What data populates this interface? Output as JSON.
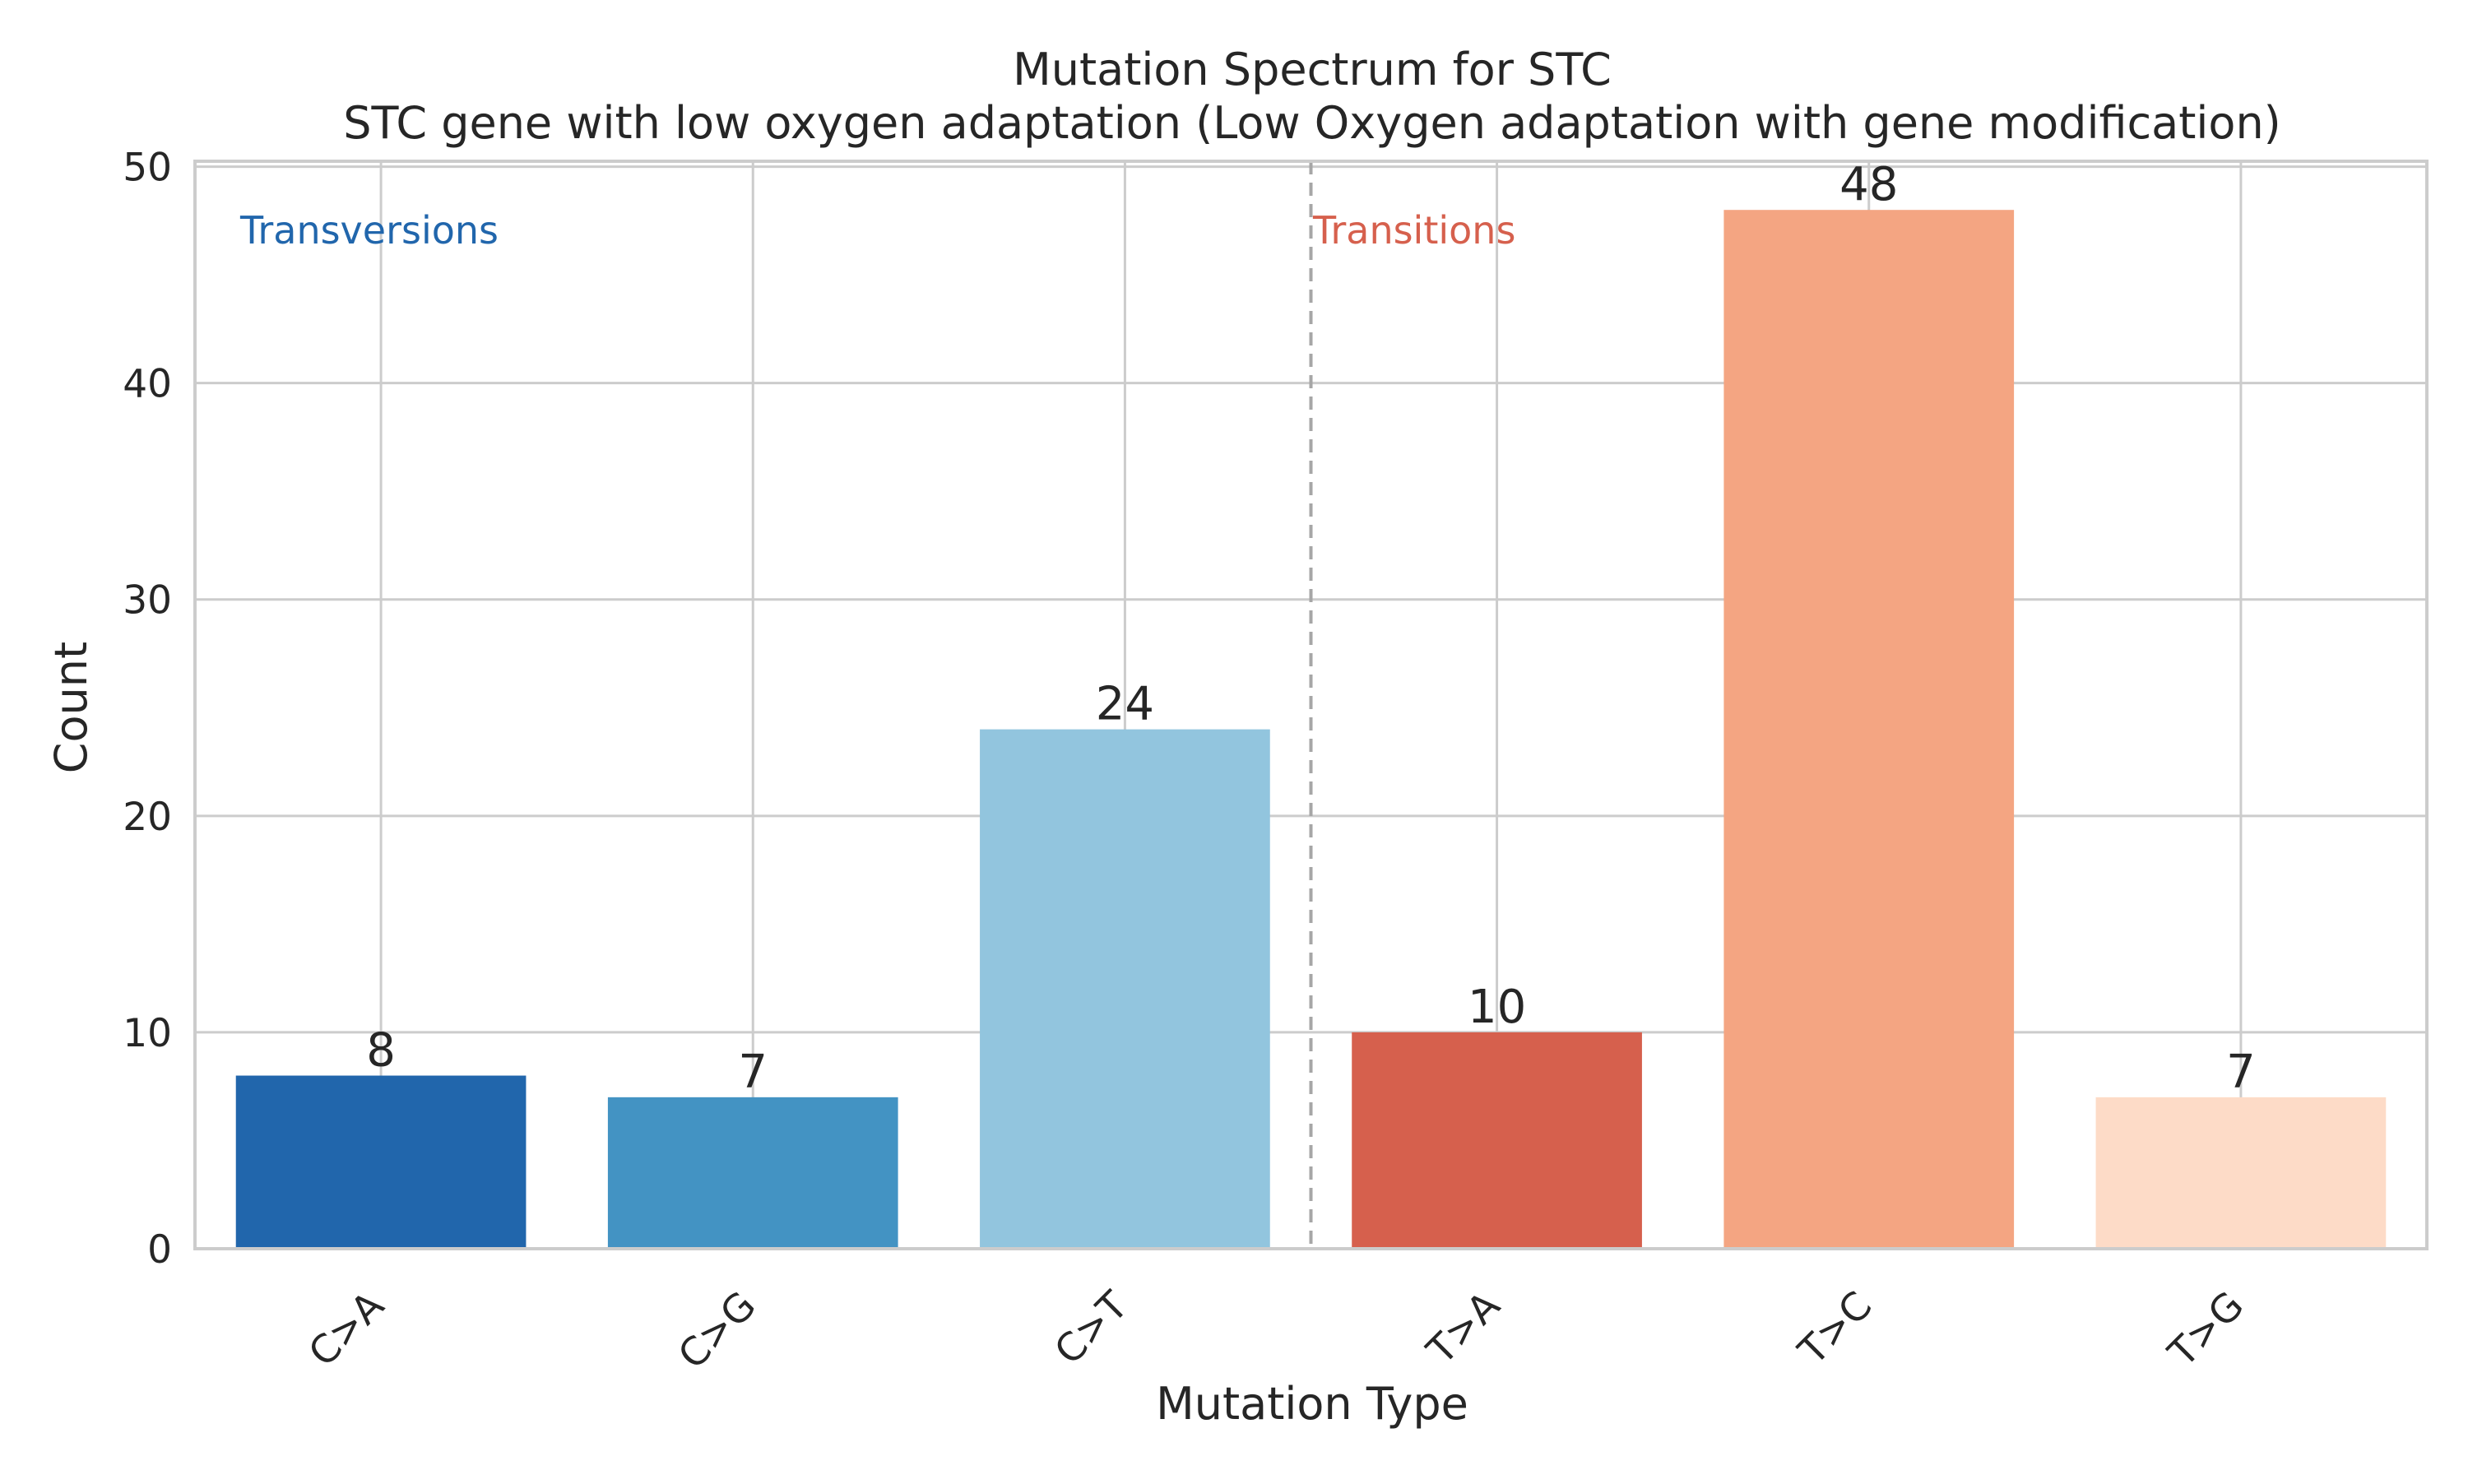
{
  "chart_data": {
    "type": "bar",
    "title": "Mutation Spectrum for STC",
    "subtitle": "STC gene with low oxygen adaptation (Low Oxygen adaptation with gene modification)",
    "xlabel": "Mutation Type",
    "ylabel": "Count",
    "categories": [
      "C>A",
      "C>G",
      "C>T",
      "T>A",
      "T>C",
      "T>G"
    ],
    "values": [
      8,
      7,
      24,
      10,
      48,
      7
    ],
    "colors": [
      "#2166ac",
      "#4393c3",
      "#92c5de",
      "#d6604d",
      "#f4a582",
      "#fddbc7"
    ],
    "ylim": [
      0,
      50
    ],
    "yticks": [
      0,
      10,
      20,
      30,
      40,
      50
    ],
    "grid": true,
    "annotations": [
      {
        "text": "Transversions",
        "color": "#2166ac"
      },
      {
        "text": "Transitions",
        "color": "#d6604d"
      }
    ]
  }
}
